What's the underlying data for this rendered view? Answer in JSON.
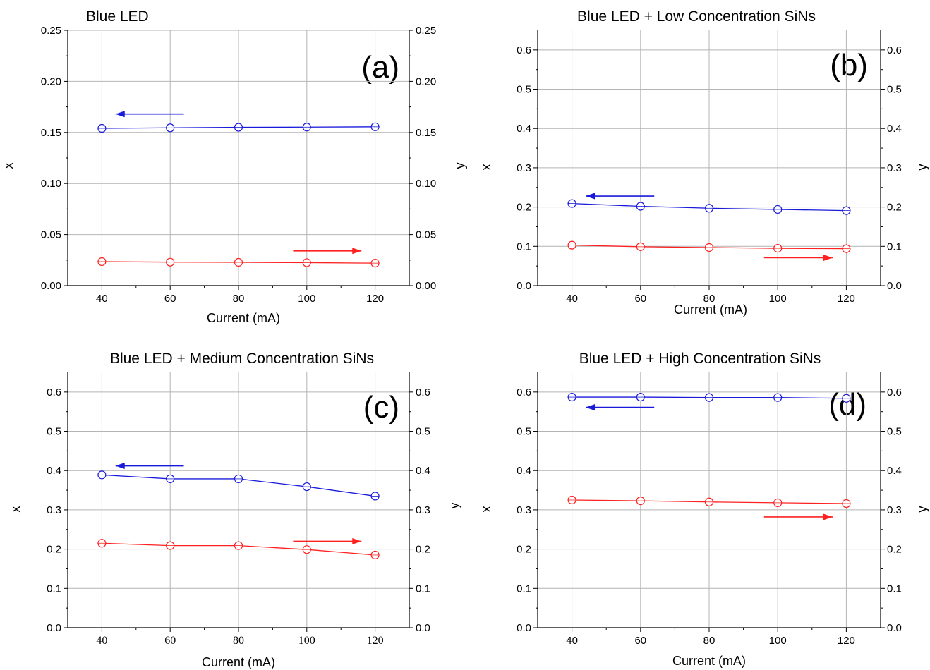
{
  "chart_data": [
    {
      "type": "line",
      "panel_label": "(a)",
      "title": "Blue LED",
      "xlabel": "Current (mA)",
      "ylabel_left": "x",
      "ylabel_right": "y",
      "x": [
        40,
        60,
        80,
        100,
        120
      ],
      "xlim": [
        30,
        130
      ],
      "ylim": [
        0,
        0.25
      ],
      "y_ticks": [
        "0.00",
        "0.05",
        "0.10",
        "0.15",
        "0.20",
        "0.25"
      ],
      "x_tick_font": "sans",
      "grid": true,
      "series": [
        {
          "axis": "left",
          "color": "#1a1adb",
          "values": [
            0.154,
            0.1545,
            0.155,
            0.1552,
            0.1555
          ]
        },
        {
          "axis": "right",
          "color": "#ff2020",
          "values": [
            0.0235,
            0.023,
            0.0228,
            0.0225,
            0.022
          ]
        }
      ],
      "arrows": [
        {
          "color": "#1a1adb",
          "direction": "left",
          "from_x": 64,
          "to_x": 44,
          "y": 0.168
        },
        {
          "color": "#ff2020",
          "direction": "right",
          "from_x": 96,
          "to_x": 116,
          "y": 0.034
        }
      ]
    },
    {
      "type": "line",
      "panel_label": "(b)",
      "title": "Blue LED + Low Concentration SiNs",
      "xlabel": "Current (mA)",
      "ylabel_left": "x",
      "ylabel_right": "y",
      "x": [
        40,
        60,
        80,
        100,
        120
      ],
      "xlim": [
        30,
        130
      ],
      "ylim": [
        0,
        0.65
      ],
      "y_ticks": [
        "0.0",
        "0.1",
        "0.2",
        "0.3",
        "0.4",
        "0.5",
        "0.6"
      ],
      "x_tick_font": "sans",
      "grid": true,
      "series": [
        {
          "axis": "left",
          "color": "#1a1adb",
          "values": [
            0.209,
            0.202,
            0.197,
            0.194,
            0.191
          ]
        },
        {
          "axis": "right",
          "color": "#ff2020",
          "values": [
            0.103,
            0.099,
            0.097,
            0.095,
            0.094
          ]
        }
      ],
      "arrows": [
        {
          "color": "#1a1adb",
          "direction": "left",
          "from_x": 64,
          "to_x": 44,
          "y": 0.228
        },
        {
          "color": "#ff2020",
          "direction": "right",
          "from_x": 96,
          "to_x": 116,
          "y": 0.071
        }
      ]
    },
    {
      "type": "line",
      "panel_label": "(c)",
      "title": "Blue LED + Medium Concentration SiNs",
      "xlabel": "Current (mA)",
      "ylabel_left": "x",
      "ylabel_right": "y",
      "x": [
        40,
        60,
        80,
        100,
        120
      ],
      "xlim": [
        30,
        130
      ],
      "ylim": [
        0,
        0.65
      ],
      "y_ticks": [
        "0.0",
        "0.1",
        "0.2",
        "0.3",
        "0.4",
        "0.5",
        "0.6"
      ],
      "x_tick_font": "serif",
      "grid": true,
      "series": [
        {
          "axis": "left",
          "color": "#1a1adb",
          "values": [
            0.389,
            0.379,
            0.379,
            0.359,
            0.335
          ]
        },
        {
          "axis": "right",
          "color": "#ff2020",
          "values": [
            0.215,
            0.209,
            0.209,
            0.199,
            0.185
          ]
        }
      ],
      "arrows": [
        {
          "color": "#1a1adb",
          "direction": "left",
          "from_x": 64,
          "to_x": 44,
          "y": 0.412
        },
        {
          "color": "#ff2020",
          "direction": "right",
          "from_x": 96,
          "to_x": 116,
          "y": 0.22
        }
      ]
    },
    {
      "type": "line",
      "panel_label": "(d)",
      "title": "Blue LED + High Concentration SiNs",
      "xlabel": "Current (mA)",
      "ylabel_left": "x",
      "ylabel_right": "y",
      "x": [
        40,
        60,
        80,
        100,
        120
      ],
      "xlim": [
        30,
        130
      ],
      "ylim": [
        0,
        0.65
      ],
      "y_ticks": [
        "0.0",
        "0.1",
        "0.2",
        "0.3",
        "0.4",
        "0.5",
        "0.6"
      ],
      "x_tick_font": "sans",
      "grid": true,
      "series": [
        {
          "axis": "left",
          "color": "#1a1adb",
          "values": [
            0.587,
            0.587,
            0.586,
            0.586,
            0.584
          ]
        },
        {
          "axis": "right",
          "color": "#ff2020",
          "values": [
            0.325,
            0.323,
            0.32,
            0.318,
            0.316
          ]
        }
      ],
      "arrows": [
        {
          "color": "#1a1adb",
          "direction": "left",
          "from_x": 64,
          "to_x": 44,
          "y": 0.561
        },
        {
          "color": "#ff2020",
          "direction": "right",
          "from_x": 96,
          "to_x": 116,
          "y": 0.282
        }
      ]
    }
  ]
}
